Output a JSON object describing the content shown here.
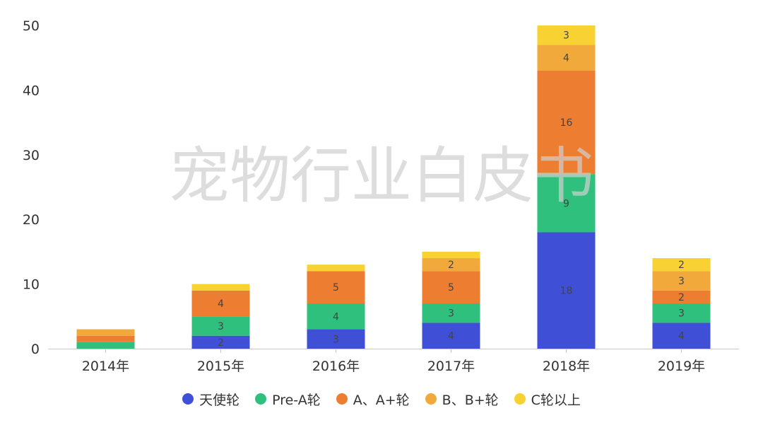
{
  "watermark": "宠物行业白皮书",
  "chart_data": {
    "type": "bar",
    "stacked": true,
    "categories": [
      "2014年",
      "2015年",
      "2016年",
      "2017年",
      "2018年",
      "2019年"
    ],
    "series": [
      {
        "name": "天使轮",
        "color": "#3f4fd6",
        "values": [
          0,
          2,
          3,
          4,
          18,
          4
        ],
        "labels": [
          "",
          "2",
          "3",
          "4",
          "18",
          "4"
        ]
      },
      {
        "name": "Pre-A轮",
        "color": "#2fc07e",
        "values": [
          1,
          3,
          4,
          3,
          9,
          3
        ],
        "labels": [
          "",
          "3",
          "4",
          "3",
          "9",
          "3"
        ]
      },
      {
        "name": "A、A+轮",
        "color": "#ed7d31",
        "values": [
          1,
          4,
          5,
          5,
          16,
          2
        ],
        "labels": [
          "",
          "4",
          "5",
          "5",
          "16",
          "2"
        ]
      },
      {
        "name": "B、B+轮",
        "color": "#f2a93b",
        "values": [
          1,
          0,
          0,
          2,
          4,
          3
        ],
        "labels": [
          "",
          "",
          "",
          "2",
          "4",
          "3"
        ]
      },
      {
        "name": "C轮以上",
        "color": "#f8d233",
        "values": [
          0,
          1,
          1,
          1,
          3,
          2
        ],
        "labels": [
          "",
          "",
          "",
          "",
          "3",
          "2"
        ]
      }
    ],
    "ylim": [
      0,
      50
    ],
    "yticks": [
      0,
      10,
      20,
      30,
      40,
      50
    ],
    "grid": false,
    "legend_position": "bottom"
  }
}
